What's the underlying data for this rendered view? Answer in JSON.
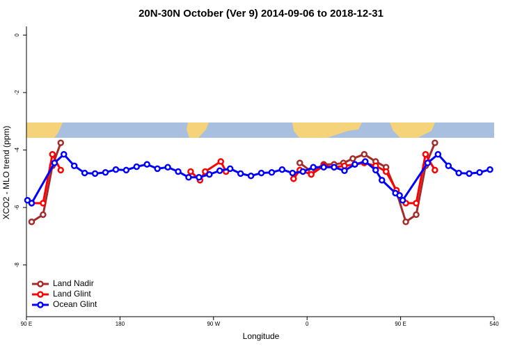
{
  "chart_data": {
    "type": "line",
    "title": "20N-30N October (Ver 9)   2014-09-06 to 2018-12-31",
    "x_label": "Longitude",
    "y_label": "XCO2 - MLO trend (ppm)",
    "xlim": [
      90,
      540
    ],
    "xticks": [
      {
        "value": 90,
        "label": "90 E"
      },
      180,
      {
        "value": 270,
        "label": "90 W"
      },
      {
        "value": 360,
        "label": "0"
      },
      {
        "value": 450,
        "label": "90 E"
      },
      540
    ],
    "ylim": [
      -9.8,
      0.3
    ],
    "yticks": [
      0,
      -2,
      -4,
      -6,
      -8
    ],
    "legend_position": "bottom-left",
    "series": [
      {
        "name": "Land Nadir",
        "color": "#a52a2a",
        "x": [
          95,
          106,
          115,
          123,
          200,
          353,
          364,
          376,
          386,
          395,
          404,
          415,
          426,
          436,
          446,
          455,
          465,
          474,
          483
        ],
        "values": [
          -6.5,
          -6.25,
          -4.55,
          -3.75,
          null,
          -4.45,
          -4.75,
          -4.5,
          -4.5,
          -4.45,
          -4.3,
          -4.15,
          -4.4,
          -4.6,
          -5.45,
          -6.5,
          -6.25,
          -4.55,
          -3.75
        ]
      },
      {
        "name": "Land Glint",
        "color": "#ff0000",
        "x": [
          95,
          106,
          115,
          123,
          200,
          248,
          257,
          262,
          277,
          282,
          320,
          347,
          353,
          364,
          376,
          386,
          396,
          406,
          415,
          426,
          436,
          446,
          455,
          465,
          474,
          483
        ],
        "values": [
          -5.85,
          -5.85,
          -4.15,
          -4.7,
          null,
          -4.75,
          -5.05,
          -4.75,
          -4.4,
          -4.75,
          null,
          -5.0,
          -4.7,
          -4.85,
          -4.55,
          -4.6,
          -4.55,
          -4.5,
          -4.45,
          -4.55,
          -4.75,
          -5.4,
          -5.85,
          -5.85,
          -4.15,
          -4.7
        ]
      },
      {
        "name": "Ocean Glint",
        "color": "#0000ff",
        "x": [
          91,
          95,
          117,
          126,
          136,
          146,
          156,
          166,
          176,
          186,
          196,
          206,
          216,
          226,
          236,
          246,
          256,
          266,
          276,
          286,
          296,
          306,
          316,
          326,
          336,
          346,
          356,
          366,
          376,
          386,
          396,
          406,
          416,
          426,
          432,
          445,
          449,
          452,
          476,
          486,
          496,
          506,
          516,
          526,
          536
        ],
        "values": [
          -5.75,
          -5.85,
          -4.45,
          -4.15,
          -4.55,
          -4.8,
          -4.82,
          -4.78,
          -4.68,
          -4.7,
          -4.58,
          -4.5,
          -4.65,
          -4.6,
          -4.75,
          -4.95,
          -4.95,
          -4.85,
          -4.72,
          -4.65,
          -4.82,
          -4.9,
          -4.8,
          -4.78,
          -4.68,
          -4.8,
          -4.75,
          -4.6,
          -4.6,
          -4.6,
          -4.72,
          -4.5,
          -4.4,
          -4.7,
          -5.05,
          -5.5,
          -5.58,
          -5.75,
          -4.45,
          -4.15,
          -4.55,
          -4.8,
          -4.82,
          -4.78,
          -4.68
        ]
      }
    ]
  }
}
